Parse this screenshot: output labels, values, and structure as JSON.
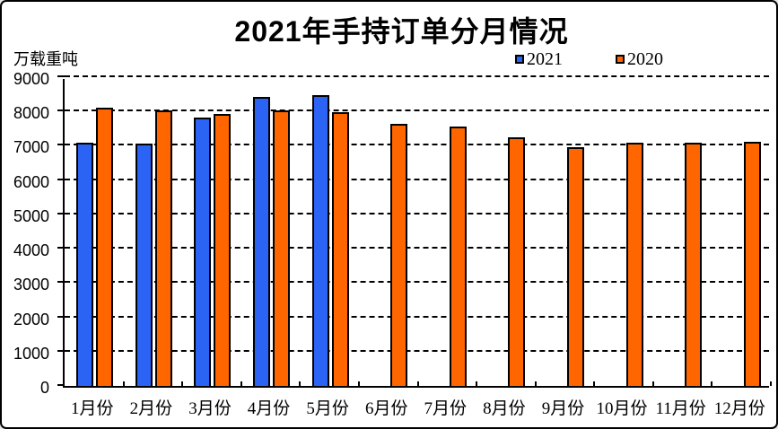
{
  "header": {
    "title": "2021年手持订单分月情况",
    "unit_label": "万载重吨"
  },
  "legend": [
    {
      "label": "2021",
      "color": "#2B64F5"
    },
    {
      "label": "2020",
      "color": "#FF6600"
    }
  ],
  "chart_data": {
    "type": "bar",
    "title": "2021年手持订单分月情况",
    "ylabel": "万载重吨",
    "categories": [
      "1月份",
      "2月份",
      "3月份",
      "4月份",
      "5月份",
      "6月份",
      "7月份",
      "8月份",
      "9月份",
      "10月份",
      "11月份",
      "12月份"
    ],
    "series": [
      {
        "name": "2021",
        "color": "#2B64F5",
        "values": [
          7080,
          7060,
          7830,
          8420,
          8490,
          null,
          null,
          null,
          null,
          null,
          null,
          null
        ]
      },
      {
        "name": "2020",
        "color": "#FF6600",
        "values": [
          8110,
          8030,
          7940,
          8040,
          7980,
          7640,
          7550,
          7240,
          6960,
          7080,
          7080,
          7110
        ]
      }
    ],
    "ylim": [
      0,
      9000
    ],
    "yticks": [
      0,
      1000,
      2000,
      3000,
      4000,
      5000,
      6000,
      7000,
      8000,
      9000
    ],
    "grid": "horizontal-dashed",
    "legend_position": "top-right"
  }
}
